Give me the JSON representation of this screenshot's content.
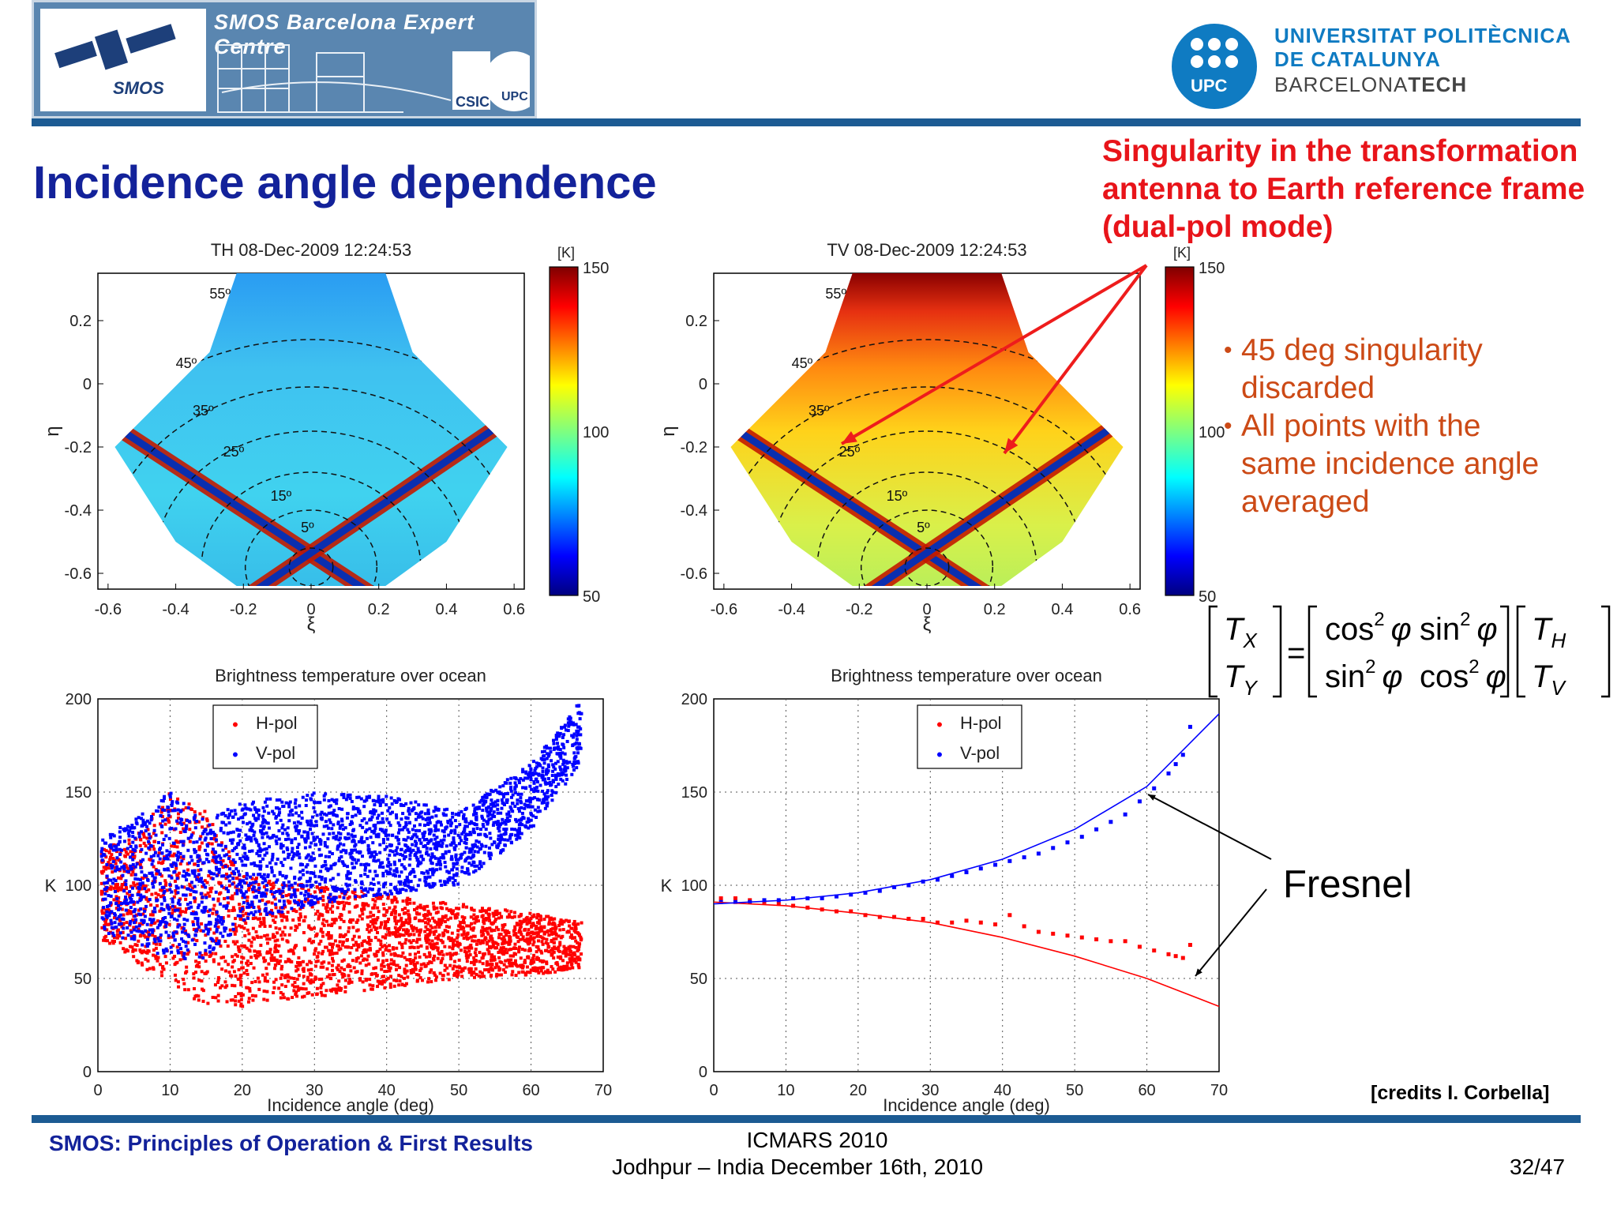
{
  "header": {
    "banner_text": "SMOS Barcelona Expert Centre",
    "smos_logo_text": "SMOS",
    "csic_logo_text": "CSIC",
    "upc_logo_text": "UPC",
    "university_line1": "UNIVERSITAT POLITÈCNICA",
    "university_line2": "DE CATALUNYA",
    "university_line3a": "BARCELONA",
    "university_line3b": "TECH",
    "brand_color": "#1c5b93"
  },
  "slide": {
    "title": "Incidence angle dependence",
    "red_note_lines": [
      "Singularity in the transformation",
      "antenna to Earth reference frame",
      "(dual-pol mode)"
    ],
    "bullets": [
      "45 deg singularity discarded",
      "All points with the same incidence angle averaged"
    ],
    "bullet_lines": [
      [
        "45 deg singularity",
        "discarded"
      ],
      [
        "All points with the",
        "same incidence angle",
        "averaged"
      ]
    ],
    "fresnel_label": "Fresnel",
    "credits": "[credits I. Corbella]",
    "equation": {
      "lhs_top": "T",
      "lhs_top_sub": "X",
      "lhs_bot": "T",
      "lhs_bot_sub": "Y",
      "m11": "cos",
      "m12": "sin",
      "m21": "sin",
      "m22": "cos",
      "power": "2",
      "angle": "φ",
      "rhs_top": "T",
      "rhs_top_sub": "H",
      "rhs_bot": "T",
      "rhs_bot_sub": "V",
      "eq": "="
    }
  },
  "footer": {
    "left": "SMOS: Principles of Operation & First Results",
    "center_line1": "ICMARS 2010",
    "center_line2": "Jodhpur – India December 16th, 2010",
    "page": "32/47"
  },
  "chart_data": [
    {
      "type": "heatmap",
      "title": "TH 08-Dec-2009 12:24:53",
      "xlabel": "ξ",
      "ylabel": "η",
      "xticks": [
        "-0.6",
        "-0.4",
        "-0.2",
        "0",
        "0.2",
        "0.4",
        "0.6"
      ],
      "yticks": [
        "0.2",
        "0",
        "-0.2",
        "-0.4",
        "-0.6"
      ],
      "xlim": [
        -0.63,
        0.63
      ],
      "ylim": [
        -0.65,
        0.35
      ],
      "colorbar": {
        "unit": "[K]",
        "ticks": [
          "150",
          "100",
          "50"
        ],
        "range": [
          50,
          150
        ],
        "colormap": "jet"
      },
      "contour_labels": [
        "55º",
        "45º",
        "35º",
        "25º",
        "15º",
        "5º"
      ],
      "background_level_K": 85
    },
    {
      "type": "heatmap",
      "title": "TV 08-Dec-2009 12:24:53",
      "xlabel": "ξ",
      "ylabel": "η",
      "xticks": [
        "-0.6",
        "-0.4",
        "-0.2",
        "0",
        "0.2",
        "0.4",
        "0.6"
      ],
      "yticks": [
        "0.2",
        "0",
        "-0.2",
        "-0.4",
        "-0.6"
      ],
      "xlim": [
        -0.63,
        0.63
      ],
      "ylim": [
        -0.65,
        0.35
      ],
      "colorbar": {
        "unit": "[K]",
        "ticks": [
          "150",
          "100",
          "50"
        ],
        "range": [
          50,
          150
        ],
        "colormap": "jet"
      },
      "contour_labels": [
        "55º",
        "45º",
        "35º",
        "25º",
        "15º",
        "5º"
      ],
      "background_level_K": 115
    },
    {
      "type": "scatter",
      "title": "Brightness temperature over ocean",
      "xlabel": "Incidence angle (deg)",
      "ylabel": "K",
      "xlim": [
        0,
        70
      ],
      "ylim": [
        0,
        200
      ],
      "xticks": [
        "0",
        "10",
        "20",
        "30",
        "40",
        "50",
        "60",
        "70"
      ],
      "yticks": [
        "0",
        "50",
        "100",
        "150",
        "200"
      ],
      "grid": true,
      "legend_position": "top-left",
      "series": [
        {
          "name": "H-pol",
          "color": "#ff0000",
          "envelope": {
            "x": [
              0,
              5,
              10,
              15,
              20,
              30,
              40,
              50,
              60,
              67
            ],
            "low": [
              72,
              60,
              45,
              35,
              35,
              40,
              45,
              50,
              52,
              55
            ],
            "high": [
              120,
              125,
              150,
              140,
              105,
              100,
              95,
              90,
              85,
              80
            ]
          }
        },
        {
          "name": "V-pol",
          "color": "#0000ff",
          "envelope": {
            "x": [
              0,
              5,
              10,
              15,
              20,
              30,
              40,
              50,
              60,
              67
            ],
            "low": [
              75,
              70,
              60,
              60,
              80,
              90,
              95,
              100,
              130,
              165
            ],
            "high": [
              125,
              135,
              150,
              135,
              145,
              150,
              148,
              140,
              165,
              200
            ]
          }
        }
      ]
    },
    {
      "type": "scatter",
      "title": "Brightness temperature over ocean",
      "xlabel": "Incidence angle (deg)",
      "ylabel": "K",
      "xlim": [
        0,
        70
      ],
      "ylim": [
        0,
        200
      ],
      "xticks": [
        "0",
        "10",
        "20",
        "30",
        "40",
        "50",
        "60",
        "70"
      ],
      "yticks": [
        "0",
        "50",
        "100",
        "150",
        "200"
      ],
      "grid": true,
      "legend_position": "top-left",
      "series": [
        {
          "name": "H-pol",
          "color": "#ff0000",
          "x": [
            1,
            3,
            5,
            7,
            9,
            11,
            13,
            15,
            17,
            19,
            21,
            23,
            25,
            27,
            29,
            31,
            33,
            35,
            37,
            39,
            41,
            43,
            45,
            47,
            49,
            51,
            53,
            55,
            57,
            59,
            61,
            63,
            64,
            65,
            66
          ],
          "y": [
            93,
            93,
            92,
            91,
            90,
            89,
            88,
            87,
            86,
            86,
            84,
            83,
            83,
            82,
            82,
            80,
            80,
            81,
            80,
            79,
            84,
            78,
            75,
            74,
            73,
            72,
            71,
            70,
            70,
            67,
            65,
            63,
            62,
            61,
            68
          ]
        },
        {
          "name": "V-pol",
          "color": "#0000ff",
          "x": [
            1,
            3,
            5,
            7,
            9,
            11,
            13,
            15,
            17,
            19,
            21,
            23,
            25,
            27,
            29,
            31,
            33,
            35,
            37,
            39,
            41,
            43,
            45,
            47,
            49,
            51,
            53,
            55,
            57,
            59,
            61,
            63,
            64,
            65,
            66
          ],
          "y": [
            91,
            91,
            91,
            92,
            92,
            93,
            93,
            93,
            94,
            95,
            96,
            97,
            99,
            100,
            102,
            103,
            105,
            107,
            109,
            111,
            113,
            115,
            117,
            120,
            123,
            126,
            130,
            134,
            138,
            145,
            152,
            160,
            165,
            170,
            185
          ]
        },
        {
          "name": "Fresnel H",
          "color": "#ff0000",
          "line": true,
          "x": [
            0,
            10,
            20,
            30,
            40,
            50,
            60,
            70
          ],
          "y": [
            91,
            89,
            85,
            80,
            72,
            62,
            50,
            35
          ]
        },
        {
          "name": "Fresnel V",
          "color": "#0000ff",
          "line": true,
          "x": [
            0,
            10,
            20,
            30,
            40,
            50,
            60,
            70
          ],
          "y": [
            90,
            92,
            96,
            103,
            114,
            130,
            153,
            192
          ]
        }
      ]
    }
  ]
}
